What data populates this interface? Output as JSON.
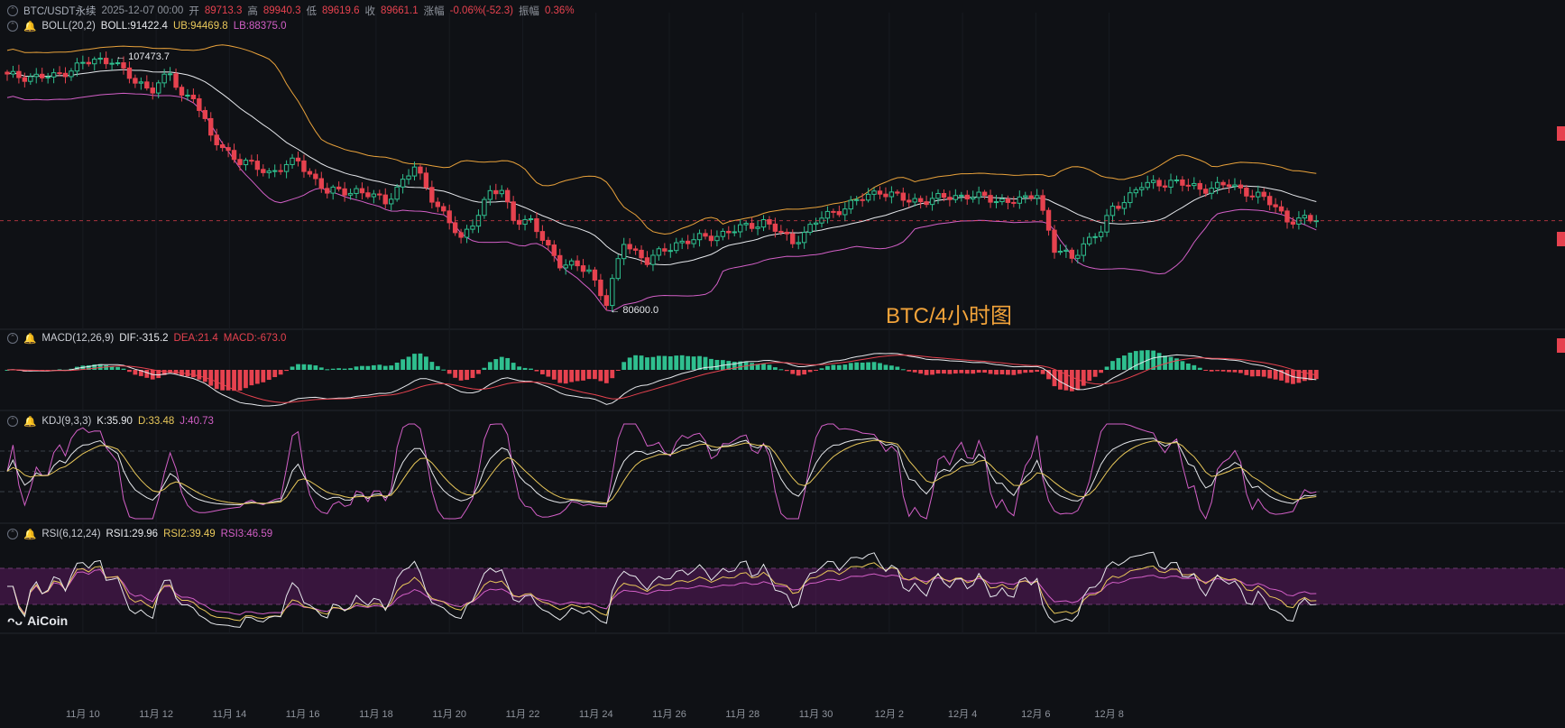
{
  "header": {
    "symbol": "BTC/USDT永续",
    "datetime": "2025-12-07 00:00",
    "open_label": "开",
    "open": "89713.3",
    "high_label": "高",
    "high": "89940.3",
    "low_label": "低",
    "low": "89619.6",
    "close_label": "收",
    "close": "89661.1",
    "change_label": "涨幅",
    "change": "-0.06%(-52.3)",
    "amp_label": "振幅",
    "amp": "0.36%"
  },
  "boll": {
    "label": "BOLL(20,2)",
    "boll": "BOLL:91422.4",
    "ub": "UB:94469.8",
    "lb": "LB:88375.0"
  },
  "macd": {
    "label": "MACD(12,26,9)",
    "dif": "DIF:-315.2",
    "dea": "DEA:21.4",
    "macd": "MACD:-673.0"
  },
  "kdj": {
    "label": "KDJ(9,3,3)",
    "k": "K:35.90",
    "d": "D:33.48",
    "j": "J:40.73"
  },
  "rsi": {
    "label": "RSI(6,12,24)",
    "rsi1": "RSI1:29.96",
    "rsi2": "RSI2:39.49",
    "rsi3": "RSI3:46.59"
  },
  "annotations": {
    "high": "107473.7",
    "low": "80600.0"
  },
  "watermark": "BTC/4小时图",
  "logo": "AiCoin",
  "colors": {
    "up": "#2fbf8f",
    "down": "#e6424f",
    "boll_mid": "#e6e8ec",
    "boll_ub": "#e9a23b",
    "boll_lb": "#d25fc6",
    "rsi_band": "#5b1a5e"
  },
  "chart_data": {
    "type": "candlestick",
    "timeframe": "4h",
    "x_ticks": [
      "11月 10",
      "11月 12",
      "11月 14",
      "11月 16",
      "11月 18",
      "11月 20",
      "11月 22",
      "11月 24",
      "11月 26",
      "11月 28",
      "11月 30",
      "12月 2",
      "12月 4",
      "12月 6",
      "12月 8"
    ],
    "price_anchors": [
      [
        0,
        105600
      ],
      [
        8,
        105500
      ],
      [
        13,
        107000
      ],
      [
        18,
        107473.7
      ],
      [
        22,
        104800
      ],
      [
        25,
        104300
      ],
      [
        28,
        105800
      ],
      [
        30,
        103300
      ],
      [
        32,
        103600
      ],
      [
        35,
        98800
      ],
      [
        40,
        96200
      ],
      [
        45,
        95000
      ],
      [
        50,
        96200
      ],
      [
        55,
        92800
      ],
      [
        60,
        93000
      ],
      [
        65,
        91800
      ],
      [
        70,
        95500
      ],
      [
        73,
        92300
      ],
      [
        78,
        87500
      ],
      [
        83,
        92700
      ],
      [
        85,
        92900
      ],
      [
        87,
        90000
      ],
      [
        90,
        89400
      ],
      [
        95,
        85000
      ],
      [
        100,
        84200
      ],
      [
        103,
        80600
      ],
      [
        106,
        87300
      ],
      [
        110,
        85200
      ],
      [
        115,
        87200
      ],
      [
        120,
        87800
      ],
      [
        125,
        88600
      ],
      [
        130,
        89600
      ],
      [
        135,
        87300
      ],
      [
        140,
        90000
      ],
      [
        145,
        91500
      ],
      [
        150,
        93000
      ],
      [
        155,
        91800
      ],
      [
        160,
        92100
      ],
      [
        165,
        92500
      ],
      [
        170,
        91900
      ],
      [
        175,
        91900
      ],
      [
        177,
        92800
      ],
      [
        180,
        86500
      ],
      [
        183,
        85500
      ],
      [
        185,
        87200
      ],
      [
        188,
        88500
      ],
      [
        190,
        91000
      ],
      [
        195,
        93500
      ],
      [
        200,
        94000
      ],
      [
        205,
        93200
      ],
      [
        210,
        93600
      ],
      [
        215,
        92400
      ],
      [
        218,
        91200
      ],
      [
        220,
        89800
      ],
      [
        225,
        89661.1
      ]
    ],
    "indicators": {
      "boll": {
        "period": 20,
        "k": 2,
        "mid": 91422.4,
        "ub": 94469.8,
        "lb": 88375.0
      },
      "macd": {
        "params": [
          12,
          26,
          9
        ],
        "dif": -315.2,
        "dea": 21.4,
        "macd": -673.0
      },
      "kdj": {
        "params": [
          9,
          3,
          3
        ],
        "k": 35.9,
        "d": 33.48,
        "j": 40.73
      },
      "rsi": {
        "params": [
          6,
          12,
          24
        ],
        "rsi1": 29.96,
        "rsi2": 39.49,
        "rsi3": 46.59
      }
    }
  }
}
